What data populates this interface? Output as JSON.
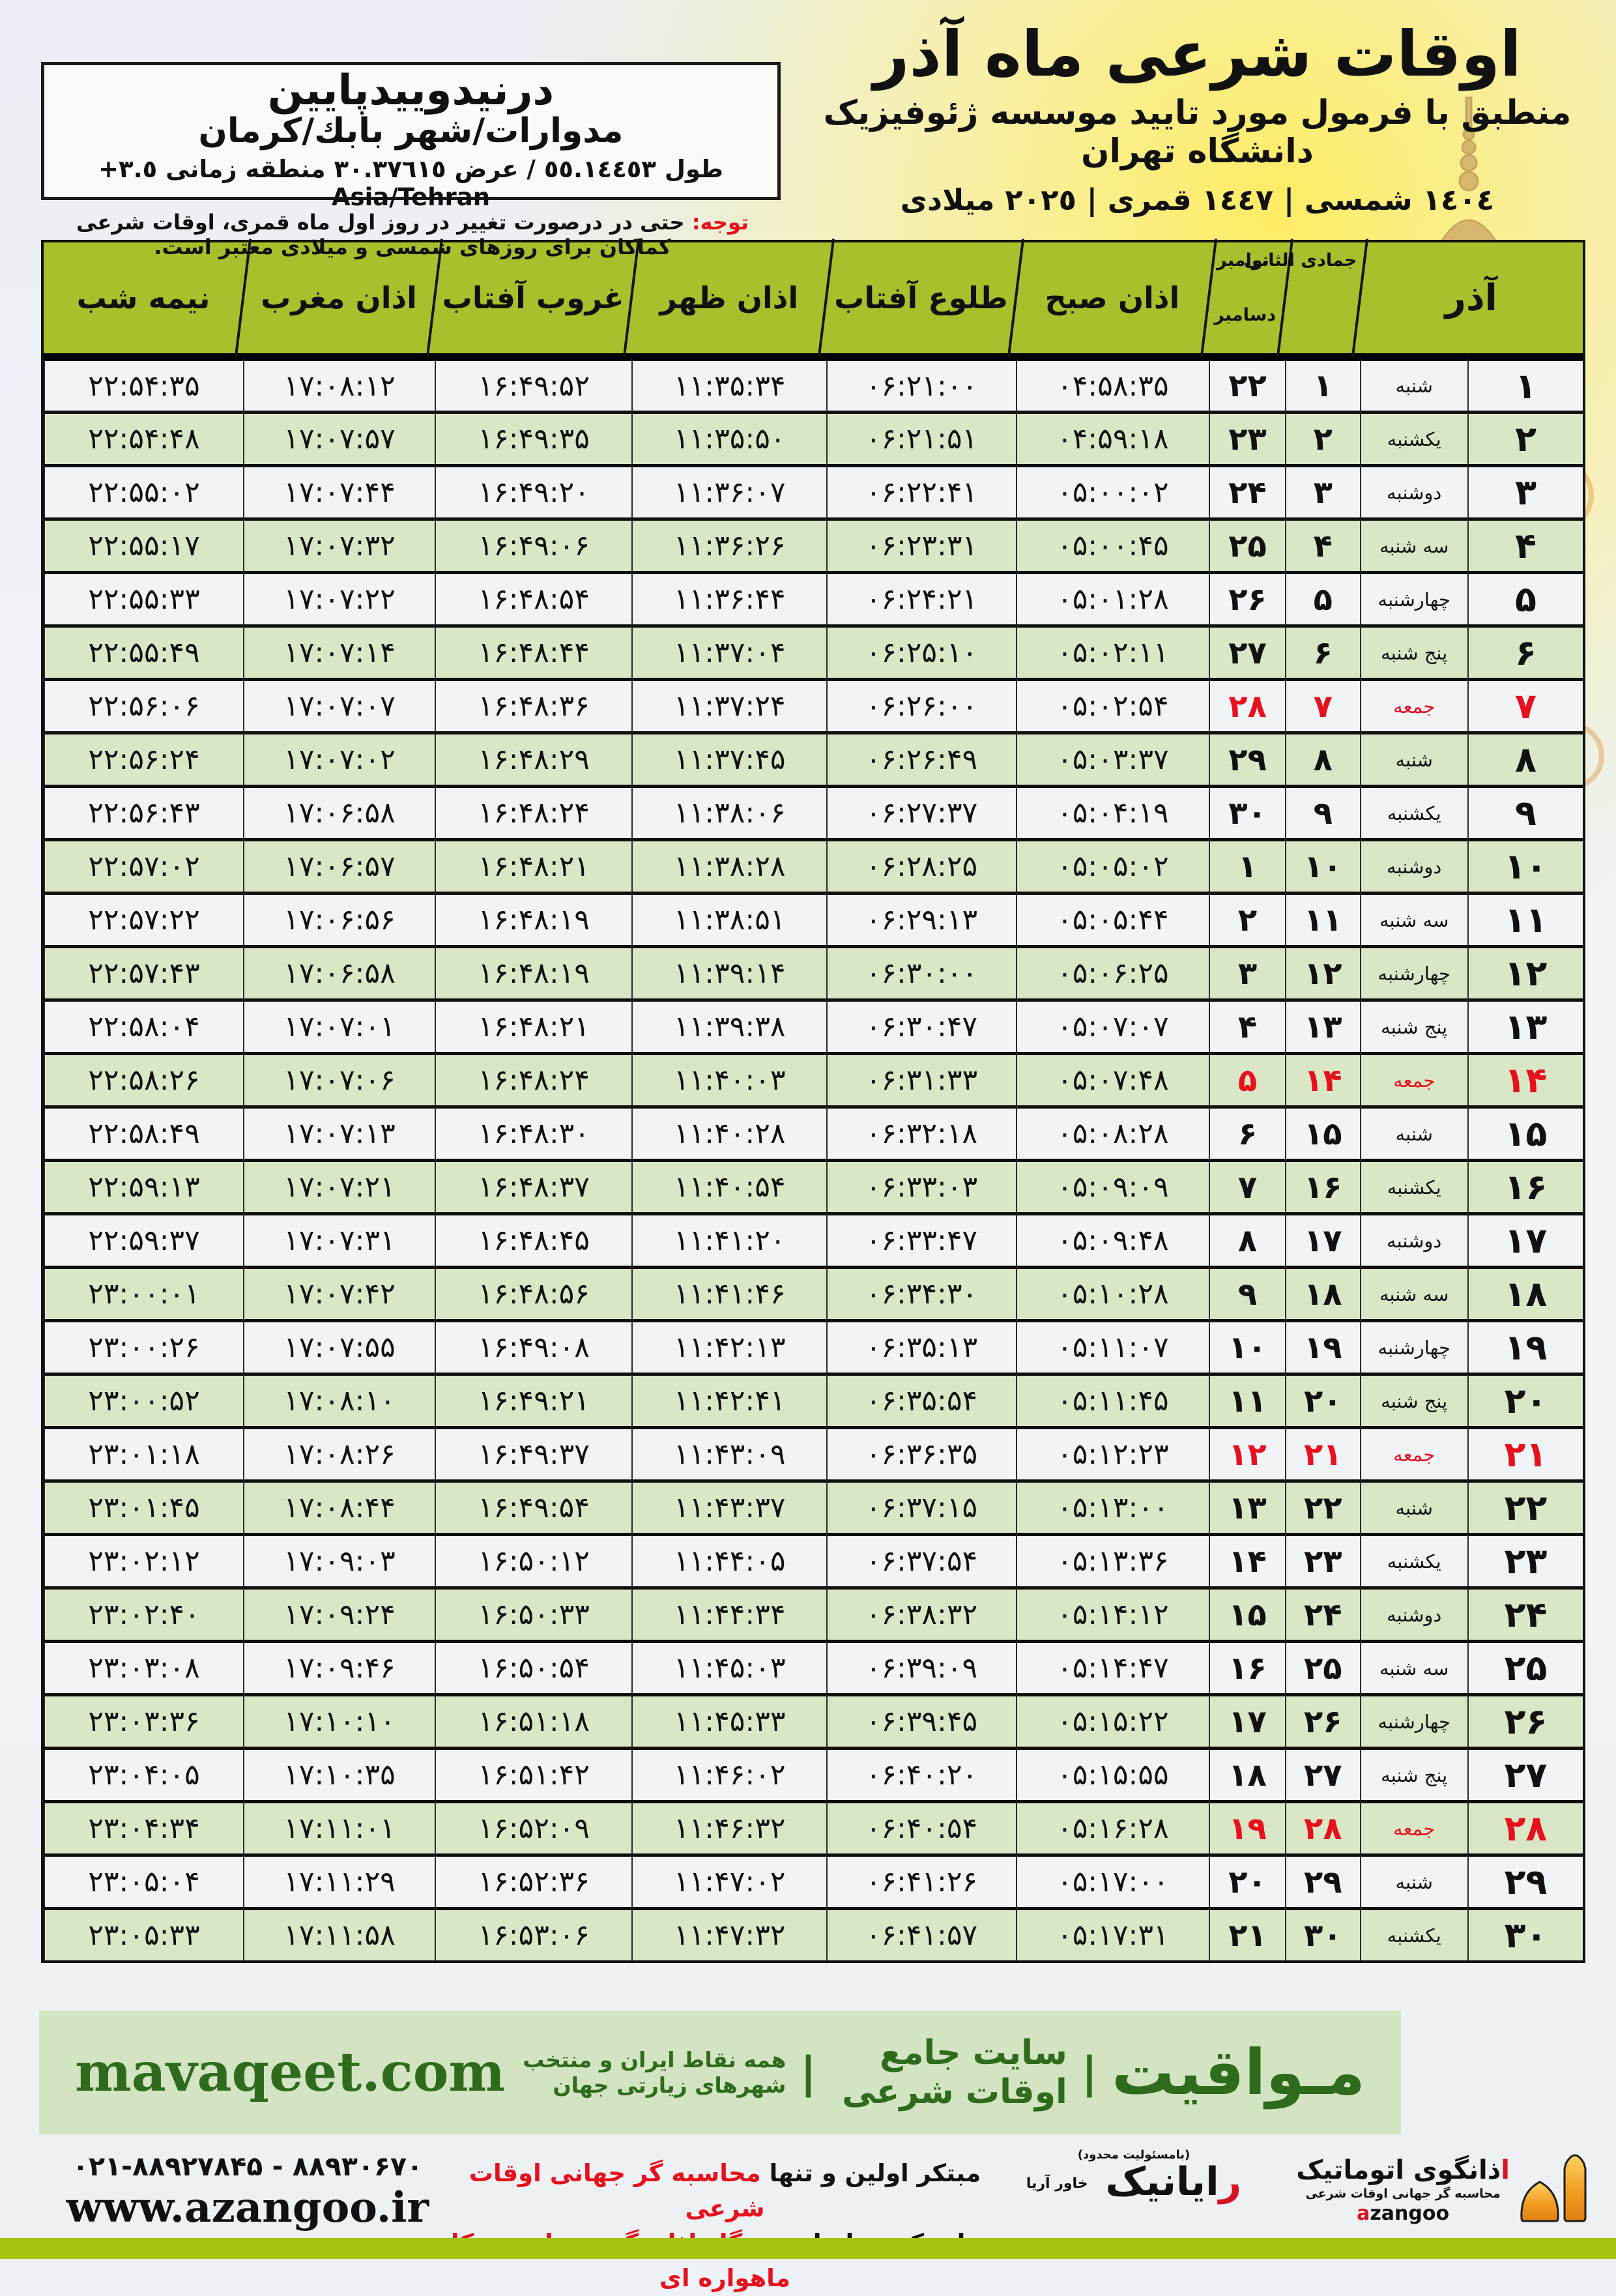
{
  "colors": {
    "olive": "#a8c02c",
    "row-green": "#d9e7c7",
    "row-light": "#f1f4f6",
    "red": "#e7101c",
    "bar-green": "#d3e4c2",
    "dark-green": "#2f6b1c",
    "strip": "#a5c40f"
  },
  "title_block": {
    "title": "اوقات شرعی ماه آذر",
    "subtitle": "منطبق با فرمول مورد تایید موسسه ژئوفیزیک دانشگاه تهران",
    "years_line": "١٤٠٤ شمسی | ١٤٤٧ قمری | ٢٠٢٥ میلادی"
  },
  "location_box": {
    "name": "درنیدوییدپایین",
    "region": "مدوارات/شهر بابك/كرمان",
    "coords_line": "طول ٥٥.١٤٤٥٣ / عرض ٣٠.٣٧٦١٥ منطقه زمانی ٣.٥+ Asia/Tehran"
  },
  "note": {
    "label": "توجه:",
    "text": " حتی در درصورت تغییر در روز اول ماه قمری، اوقات شرعی کماکان برای روزهای شمسی و میلادی معتبر است."
  },
  "table": {
    "month_header": "آذر",
    "hijri_month": "جمادی الثانی",
    "greg_month_top": "نوامبر",
    "greg_month_bottom": "دسامبر",
    "time_headers": [
      "اذان صبح",
      "طلوع آفتاب",
      "اذان ظهر",
      "غروب آفتاب",
      "اذان مغرب",
      "نیمه شب"
    ],
    "rows": [
      {
        "day": 1,
        "weekday": "شنبه",
        "hijri": 1,
        "greg": 22,
        "times": [
          "04:58:35",
          "06:21:00",
          "11:35:34",
          "16:49:52",
          "17:08:12",
          "22:54:35"
        ],
        "friday": false
      },
      {
        "day": 2,
        "weekday": "یکشنبه",
        "hijri": 2,
        "greg": 23,
        "times": [
          "04:59:18",
          "06:21:51",
          "11:35:50",
          "16:49:35",
          "17:07:57",
          "22:54:48"
        ],
        "friday": false
      },
      {
        "day": 3,
        "weekday": "دوشنبه",
        "hijri": 3,
        "greg": 24,
        "times": [
          "05:00:02",
          "06:22:41",
          "11:36:07",
          "16:49:20",
          "17:07:44",
          "22:55:02"
        ],
        "friday": false
      },
      {
        "day": 4,
        "weekday": "سه شنبه",
        "hijri": 4,
        "greg": 25,
        "times": [
          "05:00:45",
          "06:23:31",
          "11:36:26",
          "16:49:06",
          "17:07:32",
          "22:55:17"
        ],
        "friday": false
      },
      {
        "day": 5,
        "weekday": "چهارشنبه",
        "hijri": 5,
        "greg": 26,
        "times": [
          "05:01:28",
          "06:24:21",
          "11:36:44",
          "16:48:54",
          "17:07:22",
          "22:55:33"
        ],
        "friday": false
      },
      {
        "day": 6,
        "weekday": "پنج شنبه",
        "hijri": 6,
        "greg": 27,
        "times": [
          "05:02:11",
          "06:25:10",
          "11:37:04",
          "16:48:44",
          "17:07:14",
          "22:55:49"
        ],
        "friday": false
      },
      {
        "day": 7,
        "weekday": "جمعه",
        "hijri": 7,
        "greg": 28,
        "times": [
          "05:02:54",
          "06:26:00",
          "11:37:24",
          "16:48:36",
          "17:07:07",
          "22:56:06"
        ],
        "friday": true
      },
      {
        "day": 8,
        "weekday": "شنبه",
        "hijri": 8,
        "greg": 29,
        "times": [
          "05:03:37",
          "06:26:49",
          "11:37:45",
          "16:48:29",
          "17:07:02",
          "22:56:24"
        ],
        "friday": false
      },
      {
        "day": 9,
        "weekday": "یکشنبه",
        "hijri": 9,
        "greg": 30,
        "times": [
          "05:04:19",
          "06:27:37",
          "11:38:06",
          "16:48:24",
          "17:06:58",
          "22:56:43"
        ],
        "friday": false
      },
      {
        "day": 10,
        "weekday": "دوشنبه",
        "hijri": 10,
        "greg": 1,
        "times": [
          "05:05:02",
          "06:28:25",
          "11:38:28",
          "16:48:21",
          "17:06:57",
          "22:57:02"
        ],
        "friday": false
      },
      {
        "day": 11,
        "weekday": "سه شنبه",
        "hijri": 11,
        "greg": 2,
        "times": [
          "05:05:44",
          "06:29:13",
          "11:38:51",
          "16:48:19",
          "17:06:56",
          "22:57:22"
        ],
        "friday": false
      },
      {
        "day": 12,
        "weekday": "چهارشنبه",
        "hijri": 12,
        "greg": 3,
        "times": [
          "05:06:25",
          "06:30:00",
          "11:39:14",
          "16:48:19",
          "17:06:58",
          "22:57:43"
        ],
        "friday": false
      },
      {
        "day": 13,
        "weekday": "پنج شنبه",
        "hijri": 13,
        "greg": 4,
        "times": [
          "05:07:07",
          "06:30:47",
          "11:39:38",
          "16:48:21",
          "17:07:01",
          "22:58:04"
        ],
        "friday": false
      },
      {
        "day": 14,
        "weekday": "جمعه",
        "hijri": 14,
        "greg": 5,
        "times": [
          "05:07:48",
          "06:31:33",
          "11:40:03",
          "16:48:24",
          "17:07:06",
          "22:58:26"
        ],
        "friday": true
      },
      {
        "day": 15,
        "weekday": "شنبه",
        "hijri": 15,
        "greg": 6,
        "times": [
          "05:08:28",
          "06:32:18",
          "11:40:28",
          "16:48:30",
          "17:07:13",
          "22:58:49"
        ],
        "friday": false
      },
      {
        "day": 16,
        "weekday": "یکشنبه",
        "hijri": 16,
        "greg": 7,
        "times": [
          "05:09:09",
          "06:33:03",
          "11:40:54",
          "16:48:37",
          "17:07:21",
          "22:59:13"
        ],
        "friday": false
      },
      {
        "day": 17,
        "weekday": "دوشنبه",
        "hijri": 17,
        "greg": 8,
        "times": [
          "05:09:48",
          "06:33:47",
          "11:41:20",
          "16:48:45",
          "17:07:31",
          "22:59:37"
        ],
        "friday": false
      },
      {
        "day": 18,
        "weekday": "سه شنبه",
        "hijri": 18,
        "greg": 9,
        "times": [
          "05:10:28",
          "06:34:30",
          "11:41:46",
          "16:48:56",
          "17:07:42",
          "23:00:01"
        ],
        "friday": false
      },
      {
        "day": 19,
        "weekday": "چهارشنبه",
        "hijri": 19,
        "greg": 10,
        "times": [
          "05:11:07",
          "06:35:13",
          "11:42:13",
          "16:49:08",
          "17:07:55",
          "23:00:26"
        ],
        "friday": false
      },
      {
        "day": 20,
        "weekday": "پنج شنبه",
        "hijri": 20,
        "greg": 11,
        "times": [
          "05:11:45",
          "06:35:54",
          "11:42:41",
          "16:49:21",
          "17:08:10",
          "23:00:52"
        ],
        "friday": false
      },
      {
        "day": 21,
        "weekday": "جمعه",
        "hijri": 21,
        "greg": 12,
        "times": [
          "05:12:23",
          "06:36:35",
          "11:43:09",
          "16:49:37",
          "17:08:26",
          "23:01:18"
        ],
        "friday": true
      },
      {
        "day": 22,
        "weekday": "شنبه",
        "hijri": 22,
        "greg": 13,
        "times": [
          "05:13:00",
          "06:37:15",
          "11:43:37",
          "16:49:54",
          "17:08:44",
          "23:01:45"
        ],
        "friday": false
      },
      {
        "day": 23,
        "weekday": "یکشنبه",
        "hijri": 23,
        "greg": 14,
        "times": [
          "05:13:36",
          "06:37:54",
          "11:44:05",
          "16:50:12",
          "17:09:03",
          "23:02:12"
        ],
        "friday": false
      },
      {
        "day": 24,
        "weekday": "دوشنبه",
        "hijri": 24,
        "greg": 15,
        "times": [
          "05:14:12",
          "06:38:32",
          "11:44:34",
          "16:50:33",
          "17:09:24",
          "23:02:40"
        ],
        "friday": false
      },
      {
        "day": 25,
        "weekday": "سه شنبه",
        "hijri": 25,
        "greg": 16,
        "times": [
          "05:14:47",
          "06:39:09",
          "11:45:03",
          "16:50:54",
          "17:09:46",
          "23:03:08"
        ],
        "friday": false
      },
      {
        "day": 26,
        "weekday": "چهارشنبه",
        "hijri": 26,
        "greg": 17,
        "times": [
          "05:15:22",
          "06:39:45",
          "11:45:33",
          "16:51:18",
          "17:10:10",
          "23:03:36"
        ],
        "friday": false
      },
      {
        "day": 27,
        "weekday": "پنج شنبه",
        "hijri": 27,
        "greg": 18,
        "times": [
          "05:15:55",
          "06:40:20",
          "11:46:02",
          "16:51:42",
          "17:10:35",
          "23:04:05"
        ],
        "friday": false
      },
      {
        "day": 28,
        "weekday": "جمعه",
        "hijri": 28,
        "greg": 19,
        "times": [
          "05:16:28",
          "06:40:54",
          "11:46:32",
          "16:52:09",
          "17:11:01",
          "23:04:34"
        ],
        "friday": true
      },
      {
        "day": 29,
        "weekday": "شنبه",
        "hijri": 29,
        "greg": 20,
        "times": [
          "05:17:00",
          "06:41:26",
          "11:47:02",
          "16:52:36",
          "17:11:29",
          "23:05:04"
        ],
        "friday": false
      },
      {
        "day": 30,
        "weekday": "یکشنبه",
        "hijri": 30,
        "greg": 21,
        "times": [
          "05:17:31",
          "06:41:57",
          "11:47:32",
          "16:53:06",
          "17:11:58",
          "23:05:33"
        ],
        "friday": false
      }
    ]
  },
  "mavaqeet_bar": {
    "brand": "مـواقیت",
    "sep": "|",
    "tagline": "سایت جامع اوقات شرعی",
    "tagline2": "همه نقاط ایران و منتخب شهرهای زیارتی جهان",
    "url": "mavaqeet.com"
  },
  "bottom": {
    "phone": "۰۲۱-۸۸۹۲۷۸۴۵ - ۸۸۹۳۰۶۷۰",
    "site": "www.azangoo.ir",
    "promo_line1_black": "مبتکر اولین و تنها ",
    "promo_line1_red": "محاسبه گر جهانی اوقات شرعی",
    "promo_line2_black": "و تولید کننده انواع ",
    "promo_line2_red": "دستگاه اذان گوی تمام خودکار ماهواره ای",
    "rayanik_note": "(بامسئولیت محدود)",
    "rayanik_red": "ر",
    "rayanik_rest": "ایانیک",
    "rayanik_sub": "خاور آریا",
    "azangoo_red": "ا",
    "azangoo_rest": "ذانگوی اتوماتیک",
    "azangoo_desc": "محاسبه گر جهانی اوقات شرعی",
    "azangoo_latin_red": "a",
    "azangoo_latin_rest": "zangoo"
  }
}
